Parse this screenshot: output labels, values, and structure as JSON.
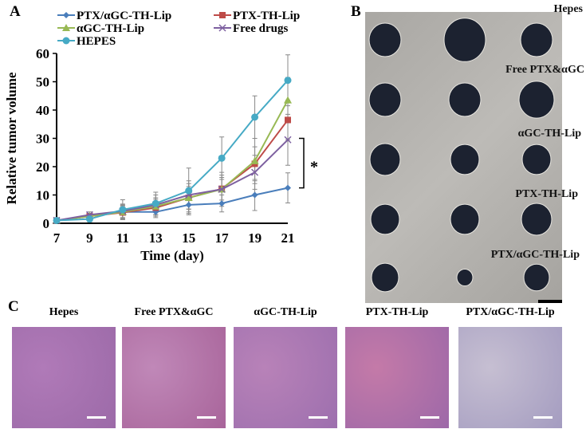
{
  "panels": {
    "a": "A",
    "b": "B",
    "c": "C"
  },
  "chart_data": {
    "type": "line",
    "xlabel": "Time (day)",
    "ylabel": "Relative tumor volume",
    "x": [
      7,
      9,
      11,
      13,
      15,
      17,
      19,
      21
    ],
    "xticks": [
      "7",
      "9",
      "11",
      "13",
      "15",
      "17",
      "19",
      "21"
    ],
    "yticks": [
      "0",
      "10",
      "20",
      "30",
      "40",
      "50",
      "60"
    ],
    "ylim": [
      0,
      60
    ],
    "legend": "top",
    "significance": "*",
    "series": [
      {
        "name": "PTX/αGC-TH-Lip",
        "color": "#4a7ebb",
        "marker": "diamond",
        "values": [
          1,
          2.5,
          4,
          4,
          6.5,
          7,
          10,
          12.5
        ],
        "error": [
          0.3,
          1,
          2,
          2,
          3.5,
          3,
          5.5,
          5.3
        ]
      },
      {
        "name": "PTX-TH-Lip",
        "color": "#be4b48",
        "marker": "square",
        "values": [
          1,
          2.5,
          3.8,
          5.5,
          9,
          12.2,
          21,
          36.5
        ],
        "error": [
          0.3,
          1,
          2.5,
          3,
          4,
          4,
          6,
          7
        ]
      },
      {
        "name": "αGC-TH-Lip",
        "color": "#98b954",
        "marker": "triangle",
        "values": [
          1,
          2.5,
          4,
          6,
          9,
          12,
          22,
          43.5
        ],
        "error": [
          0.3,
          1,
          2.5,
          3,
          5,
          6,
          8,
          8
        ]
      },
      {
        "name": "Free drugs",
        "color": "#7d60a0",
        "marker": "x",
        "values": [
          1,
          3,
          4.3,
          6.5,
          10,
          12,
          18,
          29.5
        ],
        "error": [
          0.3,
          1,
          2.5,
          3.5,
          5,
          5,
          6,
          9
        ]
      },
      {
        "name": "HEPES",
        "color": "#46aac5",
        "marker": "circle",
        "values": [
          1,
          1.5,
          4.8,
          7,
          11.5,
          23,
          37.5,
          50.5
        ],
        "error": [
          0.3,
          1,
          3.5,
          4,
          8,
          7.5,
          7.5,
          9
        ]
      }
    ]
  },
  "photo_labels": [
    "Hepes",
    "Free PTX&αGC",
    "αGC-TH-Lip",
    "PTX-TH-Lip",
    "PTX/αGC-TH-Lip"
  ],
  "histology": [
    {
      "title": "Hepes",
      "color1": "#b07ab8",
      "color2": "#9c6aa8"
    },
    {
      "title": "Free PTX&αGC",
      "color1": "#c088b8",
      "color2": "#a8649a"
    },
    {
      "title": "αGC-TH-Lip",
      "color1": "#b882b8",
      "color2": "#9d6fae"
    },
    {
      "title": "PTX-TH-Lip",
      "color1": "#c47aa8",
      "color2": "#9d68a8"
    },
    {
      "title": "PTX/αGC-TH-Lip",
      "color1": "#c6bfd2",
      "color2": "#a49cc0"
    }
  ]
}
